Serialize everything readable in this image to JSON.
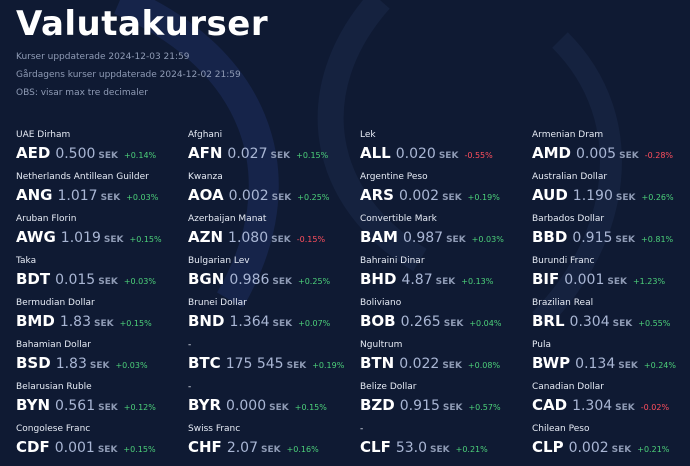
{
  "page": {
    "title": "Valutakurser",
    "updated": "Kurser uppdaterade 2024-12-03 21:59",
    "yesterday_updated": "Gårdagens kurser uppdaterade 2024-12-02 21:59",
    "note": "OBS: visar max tre decimaler"
  },
  "unit": "SEK",
  "currencies": [
    {
      "name": "UAE Dirham",
      "code": "AED",
      "rate": "0.500",
      "change": "+0.14%",
      "dir": "up"
    },
    {
      "name": "Afghani",
      "code": "AFN",
      "rate": "0.027",
      "change": "+0.15%",
      "dir": "up"
    },
    {
      "name": "Lek",
      "code": "ALL",
      "rate": "0.020",
      "change": "-0.55%",
      "dir": "down"
    },
    {
      "name": "Armenian Dram",
      "code": "AMD",
      "rate": "0.005",
      "change": "-0.28%",
      "dir": "down"
    },
    {
      "name": "Netherlands Antillean Guilder",
      "code": "ANG",
      "rate": "1.017",
      "change": "+0.03%",
      "dir": "up"
    },
    {
      "name": "Kwanza",
      "code": "AOA",
      "rate": "0.002",
      "change": "+0.25%",
      "dir": "up"
    },
    {
      "name": "Argentine Peso",
      "code": "ARS",
      "rate": "0.002",
      "change": "+0.19%",
      "dir": "up"
    },
    {
      "name": "Australian Dollar",
      "code": "AUD",
      "rate": "1.190",
      "change": "+0.26%",
      "dir": "up"
    },
    {
      "name": "Aruban Florin",
      "code": "AWG",
      "rate": "1.019",
      "change": "+0.15%",
      "dir": "up"
    },
    {
      "name": "Azerbaijan Manat",
      "code": "AZN",
      "rate": "1.080",
      "change": "-0.15%",
      "dir": "down"
    },
    {
      "name": "Convertible Mark",
      "code": "BAM",
      "rate": "0.987",
      "change": "+0.03%",
      "dir": "up"
    },
    {
      "name": "Barbados Dollar",
      "code": "BBD",
      "rate": "0.915",
      "change": "+0.81%",
      "dir": "up"
    },
    {
      "name": "Taka",
      "code": "BDT",
      "rate": "0.015",
      "change": "+0.03%",
      "dir": "up"
    },
    {
      "name": "Bulgarian Lev",
      "code": "BGN",
      "rate": "0.986",
      "change": "+0.25%",
      "dir": "up"
    },
    {
      "name": "Bahraini Dinar",
      "code": "BHD",
      "rate": "4.87",
      "change": "+0.13%",
      "dir": "up"
    },
    {
      "name": "Burundi Franc",
      "code": "BIF",
      "rate": "0.001",
      "change": "+1.23%",
      "dir": "up"
    },
    {
      "name": "Bermudian Dollar",
      "code": "BMD",
      "rate": "1.83",
      "change": "+0.15%",
      "dir": "up"
    },
    {
      "name": "Brunei Dollar",
      "code": "BND",
      "rate": "1.364",
      "change": "+0.07%",
      "dir": "up"
    },
    {
      "name": "Boliviano",
      "code": "BOB",
      "rate": "0.265",
      "change": "+0.04%",
      "dir": "up"
    },
    {
      "name": "Brazilian Real",
      "code": "BRL",
      "rate": "0.304",
      "change": "+0.55%",
      "dir": "up"
    },
    {
      "name": "Bahamian Dollar",
      "code": "BSD",
      "rate": "1.83",
      "change": "+0.03%",
      "dir": "up"
    },
    {
      "name": "-",
      "code": "BTC",
      "rate": "175 545",
      "change": "+0.19%",
      "dir": "up"
    },
    {
      "name": "Ngultrum",
      "code": "BTN",
      "rate": "0.022",
      "change": "+0.08%",
      "dir": "up"
    },
    {
      "name": "Pula",
      "code": "BWP",
      "rate": "0.134",
      "change": "+0.24%",
      "dir": "up"
    },
    {
      "name": "Belarusian Ruble",
      "code": "BYN",
      "rate": "0.561",
      "change": "+0.12%",
      "dir": "up"
    },
    {
      "name": "-",
      "code": "BYR",
      "rate": "0.000",
      "change": "+0.15%",
      "dir": "up"
    },
    {
      "name": "Belize Dollar",
      "code": "BZD",
      "rate": "0.915",
      "change": "+0.57%",
      "dir": "up"
    },
    {
      "name": "Canadian Dollar",
      "code": "CAD",
      "rate": "1.304",
      "change": "-0.02%",
      "dir": "down"
    },
    {
      "name": "Congolese Franc",
      "code": "CDF",
      "rate": "0.001",
      "change": "+0.15%",
      "dir": "up"
    },
    {
      "name": "Swiss Franc",
      "code": "CHF",
      "rate": "2.07",
      "change": "+0.16%",
      "dir": "up"
    },
    {
      "name": "-",
      "code": "CLF",
      "rate": "53.0",
      "change": "+0.21%",
      "dir": "up"
    },
    {
      "name": "Chilean Peso",
      "code": "CLP",
      "rate": "0.002",
      "change": "+0.21%",
      "dir": "up"
    }
  ]
}
